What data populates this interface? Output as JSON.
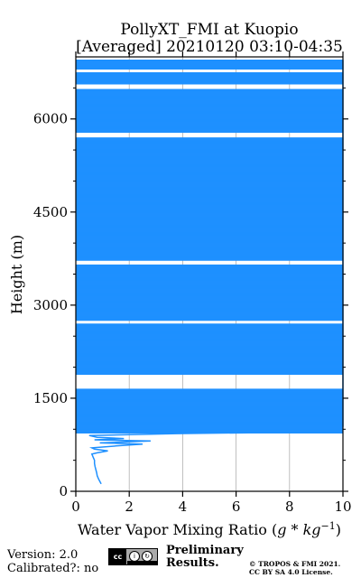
{
  "chart_data": {
    "type": "line",
    "title": [
      "PollyXT_FMI at Kuopio",
      "[Averaged] 20210120 03:10-04:35"
    ],
    "xlabel": "Water Vapor Mixing Ratio (g*kg⁻¹)",
    "ylabel": "Height (m)",
    "xlim": [
      0,
      10
    ],
    "ylim": [
      0,
      7000
    ],
    "xticks": [
      0,
      2,
      4,
      6,
      8,
      10
    ],
    "yticks": [
      0,
      1500,
      3000,
      4500,
      6000
    ],
    "grid": "vertical",
    "color": "#1e90ff",
    "series": [
      {
        "values": [
          [
            0.95,
            120
          ],
          [
            0.9,
            160
          ],
          [
            0.85,
            200
          ],
          [
            0.8,
            250
          ],
          [
            0.78,
            300
          ],
          [
            0.75,
            350
          ],
          [
            0.72,
            400
          ],
          [
            0.7,
            450
          ],
          [
            0.7,
            500
          ],
          [
            0.65,
            550
          ],
          [
            0.6,
            600
          ],
          [
            0.8,
            620
          ],
          [
            1.2,
            650
          ],
          [
            0.7,
            680
          ],
          [
            0.6,
            700
          ],
          [
            1.5,
            730
          ],
          [
            2.5,
            760
          ],
          [
            0.9,
            780
          ],
          [
            2.8,
            810
          ],
          [
            0.7,
            830
          ],
          [
            1.8,
            850
          ],
          [
            0.8,
            870
          ],
          [
            0.5,
            900
          ],
          [
            3.8,
            930
          ],
          [
            10,
            960
          ],
          [
            8,
            1000
          ],
          [
            10,
            1050
          ],
          [
            10,
            1100
          ],
          [
            10,
            1200
          ],
          [
            10,
            1300
          ],
          [
            10,
            1400
          ],
          [
            10,
            1500
          ],
          [
            10,
            1600
          ],
          [
            10,
            1900
          ],
          [
            10,
            2000
          ],
          [
            10,
            2200
          ],
          [
            10,
            2400
          ],
          [
            10,
            2600
          ],
          [
            10,
            2800
          ],
          [
            10,
            3000
          ],
          [
            10,
            3200
          ],
          [
            10,
            3400
          ],
          [
            10,
            3600
          ],
          [
            10,
            3800
          ],
          [
            10,
            4000
          ],
          [
            10,
            4200
          ],
          [
            10,
            4400
          ],
          [
            10,
            4600
          ],
          [
            10,
            4800
          ],
          [
            10,
            5000
          ],
          [
            10,
            5200
          ],
          [
            10,
            5400
          ],
          [
            10,
            5600
          ],
          [
            10,
            5800
          ],
          [
            10,
            6000
          ],
          [
            10,
            6200
          ],
          [
            10,
            6400
          ],
          [
            10,
            6600
          ],
          [
            10,
            6800
          ],
          [
            10,
            6950
          ]
        ]
      }
    ],
    "data_gaps_m": [
      [
        1650,
        1880
      ],
      [
        2700,
        2750
      ],
      [
        3650,
        3720
      ],
      [
        5700,
        5780
      ],
      [
        6480,
        6560
      ],
      [
        6750,
        6800
      ]
    ]
  },
  "footer": {
    "version": "Version: 2.0",
    "calibrated": "Calibrated?: no",
    "license_badge": "cc-by-sa-badge",
    "preliminary": [
      "Preliminary",
      "Results."
    ],
    "copyright": [
      "© TROPOS & FMI 2021.",
      "CC BY SA 4.0 License."
    ],
    "preliminary_color": "#ff3333"
  }
}
